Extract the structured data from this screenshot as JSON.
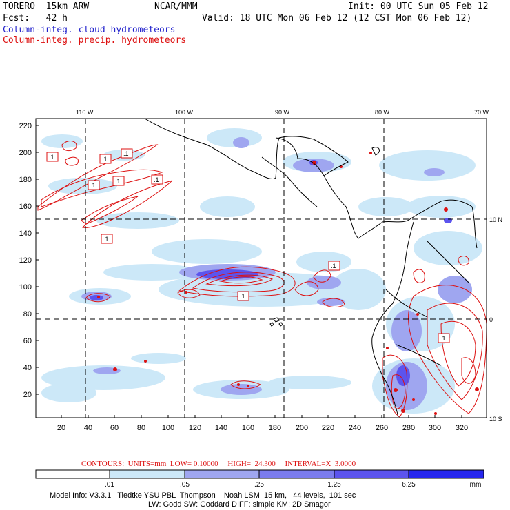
{
  "header": {
    "model": "TORERO  15km ARW",
    "org": "NCAR/MMM",
    "init": "Init: 00 UTC Sun 05 Feb 12",
    "fcst": "Fcst:   42 h",
    "valid": "Valid: 18 UTC Mon 06 Feb 12 (12 CST Mon 06 Feb 12)",
    "field1": "Column-integ. cloud hydrometeors",
    "field2": "Column-integ. precip. hydrometeors"
  },
  "colors": {
    "field1": "#2222cc",
    "field2": "#dd1111",
    "shade": [
      "#ffffff",
      "#cce8f8",
      "#9fa6f0",
      "#7b7cee",
      "#5c54ee",
      "#2626ee"
    ]
  },
  "map": {
    "lon_labels": [
      "110 W",
      "100 W",
      "90 W",
      "80 W",
      "70 W"
    ],
    "lat_labels": [
      "10 N",
      "0",
      "10 S"
    ],
    "y_ticks": [
      "220",
      "200",
      "180",
      "160",
      "140",
      "120",
      "100",
      "80",
      "60",
      "40",
      "20"
    ],
    "x_ticks": [
      "20",
      "40",
      "60",
      "80",
      "100",
      "120",
      "140",
      "160",
      "180",
      "200",
      "220",
      "240",
      "260",
      "280",
      "300",
      "320"
    ],
    "contour_labels": [
      ".1",
      ".1",
      ".1",
      ".1",
      ".1",
      ".1",
      ".1",
      ".1",
      ".1",
      ".1"
    ]
  },
  "footer": {
    "contours": "CONTOURS:  UNITS=mm  LOW= 0.10000     HIGH=  24.300     INTERVAL=X  3.0000",
    "colorbar_labels": [
      ".01",
      ".05",
      ".25",
      "1.25",
      "6.25"
    ],
    "colorbar_unit": "mm",
    "info1": "Model Info: V3.3.1   Tiedtke YSU PBL  Thompson    Noah LSM  15 km,   44 levels,  101 sec",
    "info2": "LW: Godd SW: Goddard DIFF: simple KM: 2D Smagor"
  }
}
